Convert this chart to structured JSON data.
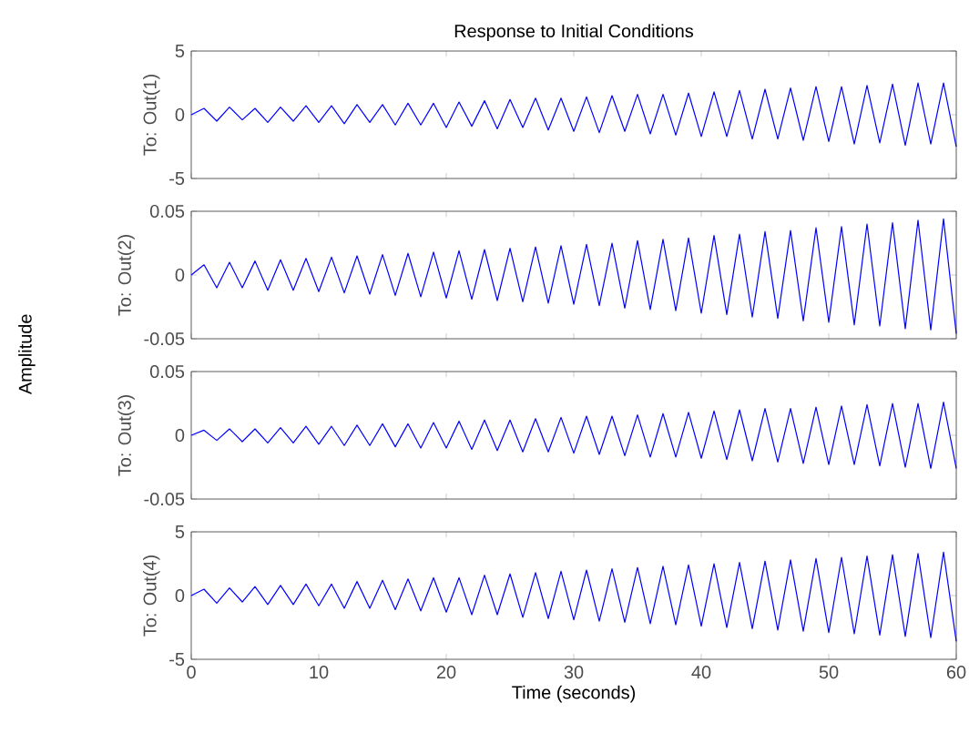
{
  "chart_data": [
    {
      "type": "line",
      "title": "Response to Initial Conditions",
      "ylabel": "To: Out(1)",
      "xlim": [
        0,
        60
      ],
      "xticks": [
        0,
        10,
        20,
        30,
        40,
        50,
        60
      ],
      "ylim": [
        -5,
        5
      ],
      "yticks": [
        -5,
        0,
        5
      ],
      "tick_labels": "y",
      "color": "#0000ff",
      "x": [
        0,
        1,
        2,
        3,
        4,
        5,
        6,
        7,
        8,
        9,
        10,
        11,
        12,
        13,
        14,
        15,
        16,
        17,
        18,
        19,
        20,
        21,
        22,
        23,
        24,
        25,
        26,
        27,
        28,
        29,
        30,
        31,
        32,
        33,
        34,
        35,
        36,
        37,
        38,
        39,
        40,
        41,
        42,
        43,
        44,
        45,
        46,
        47,
        48,
        49,
        50,
        51,
        52,
        53,
        54,
        55,
        56,
        57,
        58,
        59,
        60
      ],
      "values": [
        0,
        0.5,
        -0.5,
        0.6,
        -0.4,
        0.5,
        -0.6,
        0.6,
        -0.5,
        0.7,
        -0.6,
        0.7,
        -0.7,
        0.8,
        -0.6,
        0.8,
        -0.8,
        0.9,
        -0.8,
        0.9,
        -1.0,
        1.0,
        -0.9,
        1.1,
        -1.1,
        1.2,
        -1.0,
        1.3,
        -1.2,
        1.3,
        -1.3,
        1.4,
        -1.4,
        1.5,
        -1.3,
        1.6,
        -1.5,
        1.6,
        -1.6,
        1.7,
        -1.7,
        1.8,
        -1.7,
        1.9,
        -1.9,
        2.0,
        -1.9,
        2.1,
        -2.0,
        2.2,
        -2.1,
        2.2,
        -2.3,
        2.3,
        -2.2,
        2.4,
        -2.4,
        2.5,
        -2.3,
        2.5,
        -2.5
      ]
    },
    {
      "type": "line",
      "ylabel": "To: Out(2)",
      "annotations": [
        "Amplitude"
      ],
      "xlim": [
        0,
        60
      ],
      "xticks": [
        0,
        10,
        20,
        30,
        40,
        50,
        60
      ],
      "ylim": [
        -0.05,
        0.05
      ],
      "yticks": [
        -0.05,
        0,
        0.05
      ],
      "tick_labels": "y",
      "color": "#0000ff",
      "x": [
        0,
        1,
        2,
        3,
        4,
        5,
        6,
        7,
        8,
        9,
        10,
        11,
        12,
        13,
        14,
        15,
        16,
        17,
        18,
        19,
        20,
        21,
        22,
        23,
        24,
        25,
        26,
        27,
        28,
        29,
        30,
        31,
        32,
        33,
        34,
        35,
        36,
        37,
        38,
        39,
        40,
        41,
        42,
        43,
        44,
        45,
        46,
        47,
        48,
        49,
        50,
        51,
        52,
        53,
        54,
        55,
        56,
        57,
        58,
        59,
        60
      ],
      "values": [
        0,
        0.008,
        -0.01,
        0.01,
        -0.01,
        0.011,
        -0.012,
        0.012,
        -0.012,
        0.013,
        -0.013,
        0.014,
        -0.014,
        0.015,
        -0.015,
        0.016,
        -0.016,
        0.017,
        -0.017,
        0.018,
        -0.018,
        0.019,
        -0.019,
        0.02,
        -0.02,
        0.021,
        -0.021,
        0.022,
        -0.022,
        0.023,
        -0.023,
        0.024,
        -0.024,
        0.025,
        -0.026,
        0.027,
        -0.027,
        0.028,
        -0.028,
        0.029,
        -0.03,
        0.031,
        -0.031,
        0.032,
        -0.033,
        0.034,
        -0.034,
        0.035,
        -0.036,
        0.037,
        -0.037,
        0.038,
        -0.039,
        0.04,
        -0.04,
        0.041,
        -0.042,
        0.043,
        -0.043,
        0.044,
        -0.046
      ]
    },
    {
      "type": "line",
      "ylabel": "To: Out(3)",
      "xlim": [
        0,
        60
      ],
      "xticks": [
        0,
        10,
        20,
        30,
        40,
        50,
        60
      ],
      "ylim": [
        -0.05,
        0.05
      ],
      "yticks": [
        -0.05,
        0,
        0.05
      ],
      "tick_labels": "y",
      "color": "#0000ff",
      "x": [
        0,
        1,
        2,
        3,
        4,
        5,
        6,
        7,
        8,
        9,
        10,
        11,
        12,
        13,
        14,
        15,
        16,
        17,
        18,
        19,
        20,
        21,
        22,
        23,
        24,
        25,
        26,
        27,
        28,
        29,
        30,
        31,
        32,
        33,
        34,
        35,
        36,
        37,
        38,
        39,
        40,
        41,
        42,
        43,
        44,
        45,
        46,
        47,
        48,
        49,
        50,
        51,
        52,
        53,
        54,
        55,
        56,
        57,
        58,
        59,
        60
      ],
      "values": [
        0,
        0.004,
        -0.004,
        0.005,
        -0.005,
        0.005,
        -0.006,
        0.006,
        -0.006,
        0.007,
        -0.007,
        0.007,
        -0.008,
        0.008,
        -0.008,
        0.009,
        -0.009,
        0.009,
        -0.01,
        0.01,
        -0.01,
        0.011,
        -0.011,
        0.012,
        -0.012,
        0.012,
        -0.013,
        0.013,
        -0.013,
        0.014,
        -0.014,
        0.015,
        -0.015,
        0.015,
        -0.016,
        0.016,
        -0.017,
        0.017,
        -0.017,
        0.018,
        -0.018,
        0.019,
        -0.019,
        0.02,
        -0.02,
        0.021,
        -0.021,
        0.021,
        -0.022,
        0.022,
        -0.023,
        0.023,
        -0.023,
        0.024,
        -0.024,
        0.025,
        -0.025,
        0.025,
        -0.026,
        0.026,
        -0.026
      ]
    },
    {
      "type": "line",
      "ylabel": "To: Out(4)",
      "xlabel": "Time (seconds)",
      "xlim": [
        0,
        60
      ],
      "xticks": [
        0,
        10,
        20,
        30,
        40,
        50,
        60
      ],
      "ylim": [
        -5,
        5
      ],
      "yticks": [
        -5,
        0,
        5
      ],
      "color": "#0000ff",
      "x": [
        0,
        1,
        2,
        3,
        4,
        5,
        6,
        7,
        8,
        9,
        10,
        11,
        12,
        13,
        14,
        15,
        16,
        17,
        18,
        19,
        20,
        21,
        22,
        23,
        24,
        25,
        26,
        27,
        28,
        29,
        30,
        31,
        32,
        33,
        34,
        35,
        36,
        37,
        38,
        39,
        40,
        41,
        42,
        43,
        44,
        45,
        46,
        47,
        48,
        49,
        50,
        51,
        52,
        53,
        54,
        55,
        56,
        57,
        58,
        59,
        60
      ],
      "values": [
        0,
        0.5,
        -0.6,
        0.6,
        -0.5,
        0.7,
        -0.7,
        0.8,
        -0.7,
        0.9,
        -0.8,
        0.9,
        -1.0,
        1.1,
        -1.0,
        1.2,
        -1.1,
        1.3,
        -1.2,
        1.4,
        -1.3,
        1.4,
        -1.5,
        1.6,
        -1.5,
        1.7,
        -1.7,
        1.8,
        -1.8,
        1.9,
        -1.9,
        2.0,
        -2.0,
        2.1,
        -2.1,
        2.2,
        -2.2,
        2.3,
        -2.3,
        2.4,
        -2.4,
        2.5,
        -2.5,
        2.6,
        -2.6,
        2.7,
        -2.7,
        2.8,
        -2.8,
        2.9,
        -2.9,
        3.0,
        -3.0,
        3.1,
        -3.1,
        3.2,
        -3.2,
        3.3,
        -3.3,
        3.4,
        -3.6
      ]
    }
  ]
}
